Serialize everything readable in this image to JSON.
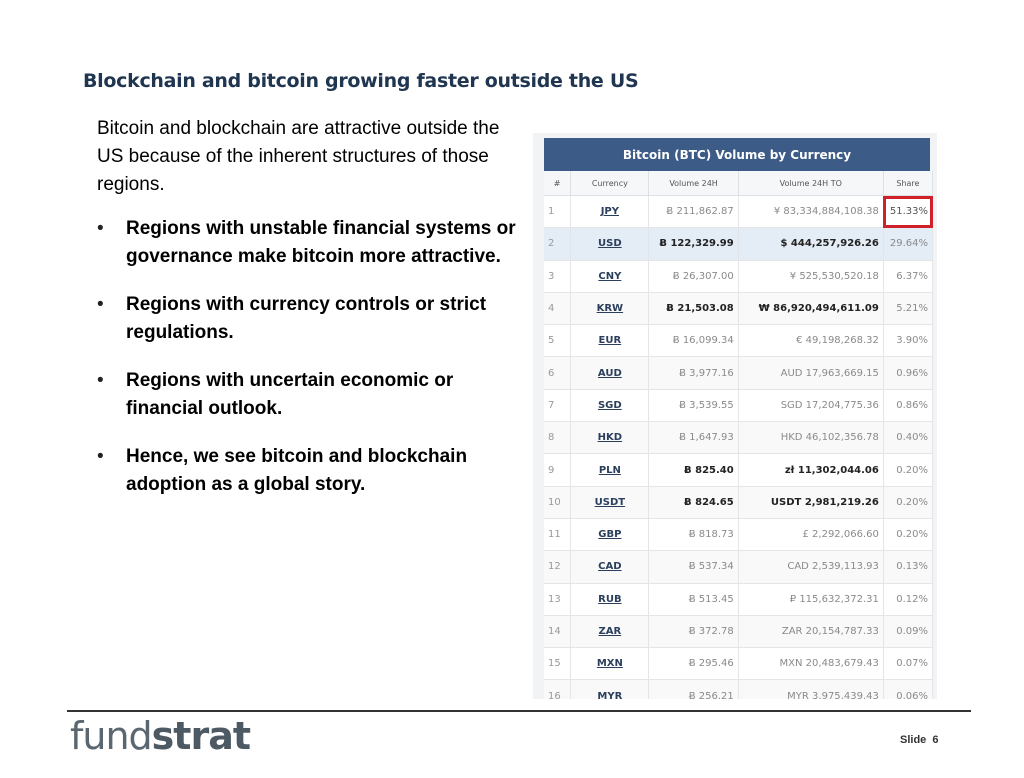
{
  "slide": {
    "title": "Blockchain and bitcoin growing faster outside the US",
    "intro": "Bitcoin and blockchain are attractive outside the US because of the inherent structures of those regions.",
    "bullets": [
      "Regions with unstable financial systems or governance make bitcoin more attractive.",
      "Regions with currency controls or strict regulations.",
      "Regions with uncertain economic or financial outlook.",
      "Hence, we see bitcoin and blockchain adoption as a global story."
    ],
    "bullet_symbol": "•"
  },
  "table": {
    "title": "Bitcoin (BTC) Volume by Currency",
    "columns": [
      "#",
      "Currency",
      "Volume 24H",
      "Volume 24H TO",
      "Share"
    ],
    "rows": [
      {
        "n": "1",
        "currency": "JPY",
        "vol": "Ƀ 211,862.87",
        "vol_to": "¥ 83,334,884,108.38",
        "share": "51.33%"
      },
      {
        "n": "2",
        "currency": "USD",
        "vol": "Ƀ 122,329.99",
        "vol_to": "$ 444,257,926.26",
        "share": "29.64%"
      },
      {
        "n": "3",
        "currency": "CNY",
        "vol": "Ƀ 26,307.00",
        "vol_to": "¥ 525,530,520.18",
        "share": "6.37%"
      },
      {
        "n": "4",
        "currency": "KRW",
        "vol": "Ƀ 21,503.08",
        "vol_to": "₩ 86,920,494,611.09",
        "share": "5.21%"
      },
      {
        "n": "5",
        "currency": "EUR",
        "vol": "Ƀ 16,099.34",
        "vol_to": "€ 49,198,268.32",
        "share": "3.90%"
      },
      {
        "n": "6",
        "currency": "AUD",
        "vol": "Ƀ 3,977.16",
        "vol_to": "AUD 17,963,669.15",
        "share": "0.96%"
      },
      {
        "n": "7",
        "currency": "SGD",
        "vol": "Ƀ 3,539.55",
        "vol_to": "SGD 17,204,775.36",
        "share": "0.86%"
      },
      {
        "n": "8",
        "currency": "HKD",
        "vol": "Ƀ 1,647.93",
        "vol_to": "HKD 46,102,356.78",
        "share": "0.40%"
      },
      {
        "n": "9",
        "currency": "PLN",
        "vol": "Ƀ 825.40",
        "vol_to": "zł 11,302,044.06",
        "share": "0.20%"
      },
      {
        "n": "10",
        "currency": "USDT",
        "vol": "Ƀ 824.65",
        "vol_to": "USDT 2,981,219.26",
        "share": "0.20%"
      },
      {
        "n": "11",
        "currency": "GBP",
        "vol": "Ƀ 818.73",
        "vol_to": "£ 2,292,066.60",
        "share": "0.20%"
      },
      {
        "n": "12",
        "currency": "CAD",
        "vol": "Ƀ 537.34",
        "vol_to": "CAD 2,539,113.93",
        "share": "0.13%"
      },
      {
        "n": "13",
        "currency": "RUB",
        "vol": "Ƀ 513.45",
        "vol_to": "₽ 115,632,372.31",
        "share": "0.12%"
      },
      {
        "n": "14",
        "currency": "ZAR",
        "vol": "Ƀ 372.78",
        "vol_to": "ZAR 20,154,787.33",
        "share": "0.09%"
      },
      {
        "n": "15",
        "currency": "MXN",
        "vol": "Ƀ 295.46",
        "vol_to": "MXN 20,483,679.43",
        "share": "0.07%"
      },
      {
        "n": "16",
        "currency": "MYR",
        "vol": "Ƀ 256.21",
        "vol_to": "MYR 3,975,439.43",
        "share": "0.06%"
      }
    ],
    "bold_rows": [
      2,
      4,
      9,
      10
    ],
    "highlight_row": 2,
    "boxed_share_row": 1,
    "header_color": "#3c5b86",
    "box_color": "#d0202a"
  },
  "footer": {
    "logo_light": "fund",
    "logo_bold": "strat",
    "slide_label": "Slide",
    "slide_number": "6"
  }
}
